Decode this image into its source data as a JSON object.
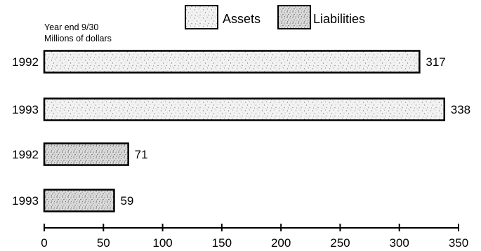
{
  "chart_data": {
    "type": "bar",
    "orientation": "horizontal",
    "title": "",
    "subtitle_lines": [
      "Year end 9/30",
      "Millions of dollars"
    ],
    "xlabel": "",
    "ylabel": "",
    "xlim": [
      0,
      350
    ],
    "x_ticks": [
      0,
      50,
      100,
      150,
      200,
      250,
      300,
      350
    ],
    "grid": false,
    "legend": {
      "placement": "top",
      "entries": [
        {
          "name": "Assets",
          "pattern": "light-stipple"
        },
        {
          "name": "Liabilities",
          "pattern": "dense-stipple"
        }
      ]
    },
    "bars": [
      {
        "category": "1992",
        "series": "Assets",
        "value": 317
      },
      {
        "category": "1993",
        "series": "Assets",
        "value": 338
      },
      {
        "category": "1992",
        "series": "Liabilities",
        "value": 71
      },
      {
        "category": "1993",
        "series": "Liabilities",
        "value": 59
      }
    ],
    "value_labels": [
      "317",
      "338",
      "71",
      "59"
    ],
    "colors": {
      "ink": "#000000",
      "assets_fill": "#eeeeee",
      "liabilities_fill": "#d4d4d4"
    }
  }
}
